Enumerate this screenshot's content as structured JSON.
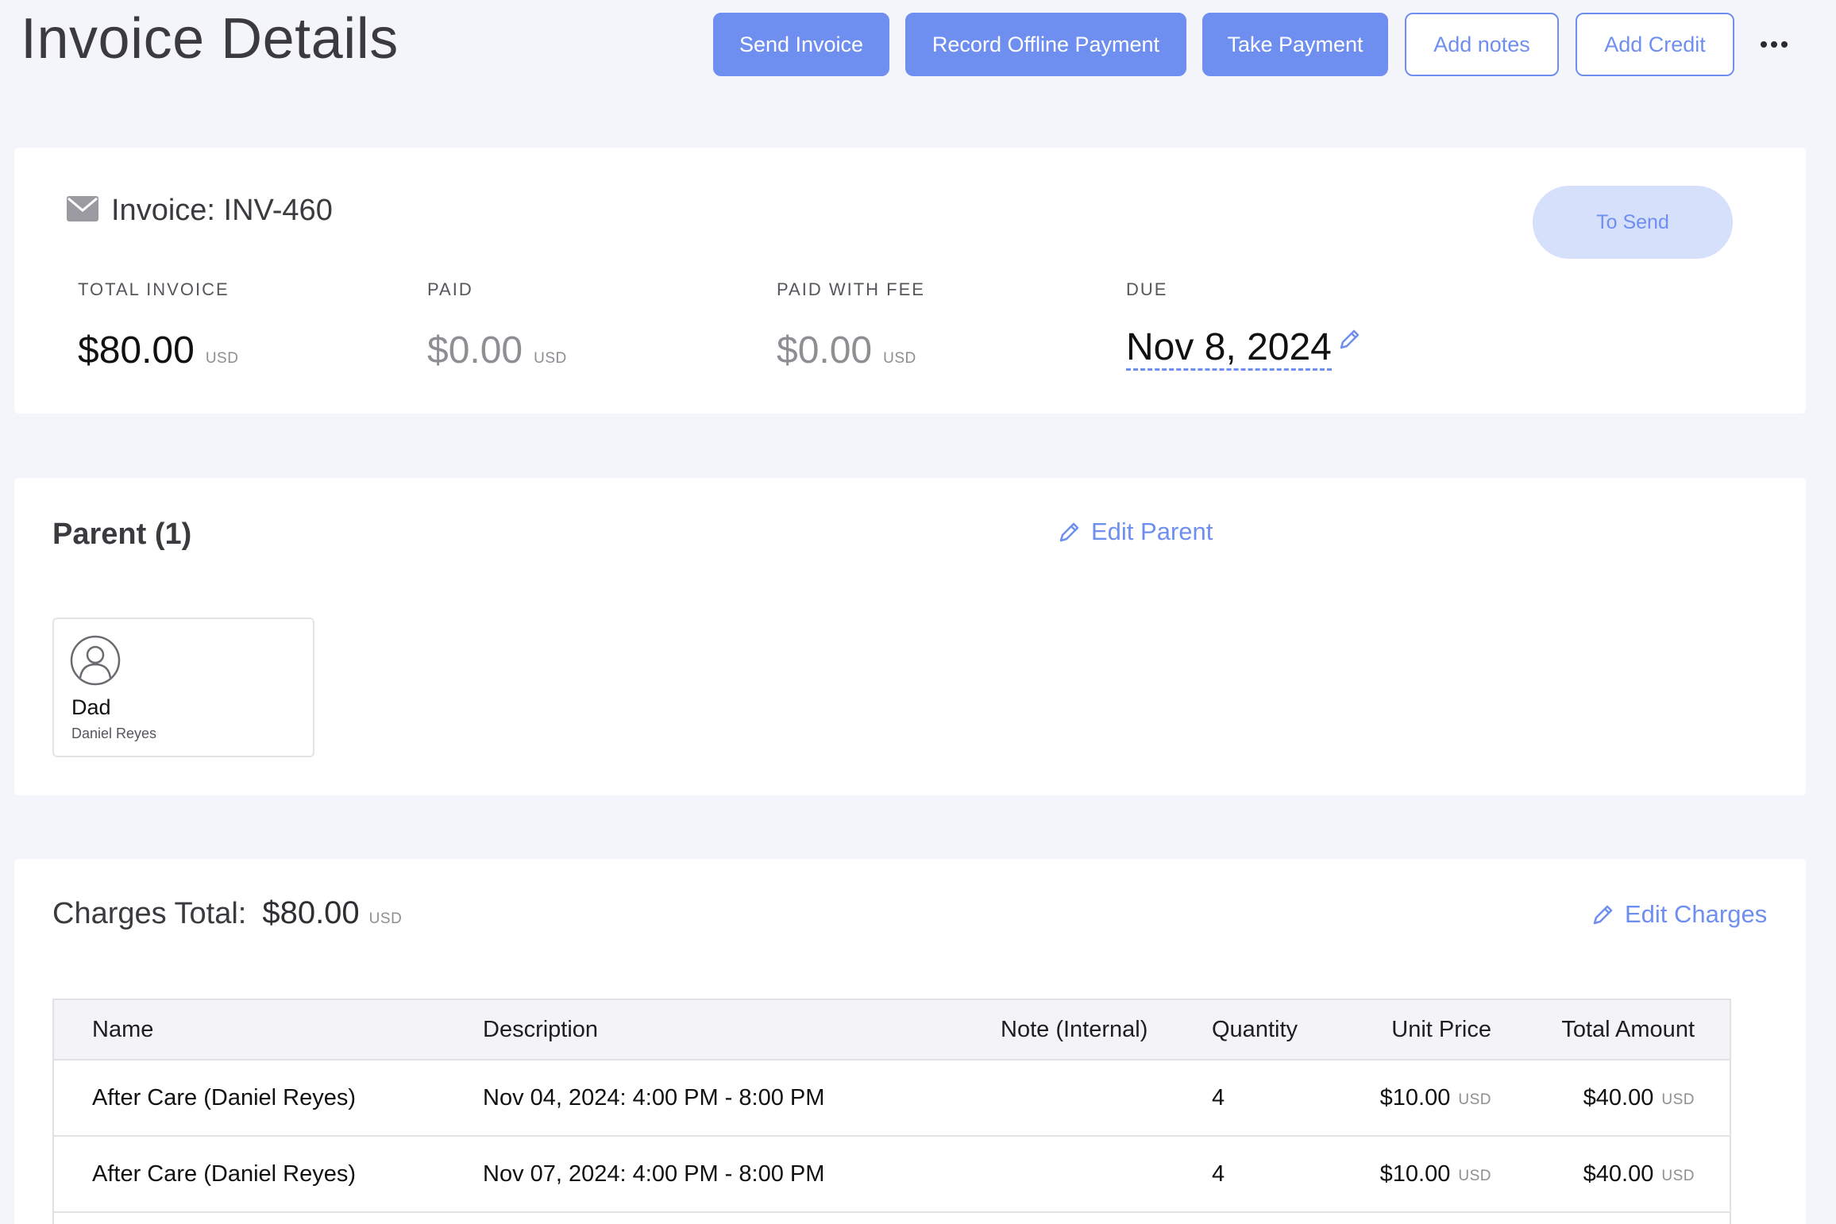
{
  "page": {
    "title": "Invoice Details"
  },
  "toolbar": {
    "send_invoice": "Send Invoice",
    "record_offline_payment": "Record Offline Payment",
    "take_payment": "Take Payment",
    "add_notes": "Add notes",
    "add_credit": "Add Credit",
    "more_icon": "more-horizontal-icon"
  },
  "invoice": {
    "title": "Invoice: INV-460",
    "icon": "mail-icon",
    "status": "To Send",
    "stats": {
      "total": {
        "label": "TOTAL INVOICE",
        "amount": "$80.00",
        "currency": "USD"
      },
      "paid": {
        "label": "PAID",
        "amount": "$0.00",
        "currency": "USD"
      },
      "paid_with_fee": {
        "label": "PAID WITH FEE",
        "amount": "$0.00",
        "currency": "USD"
      },
      "due": {
        "label": "DUE",
        "date": "Nov 8, 2024"
      }
    }
  },
  "parents": {
    "title": "Parent (1)",
    "edit_label": "Edit Parent",
    "items": [
      {
        "relation": "Dad",
        "name": "Daniel Reyes"
      }
    ]
  },
  "charges": {
    "total_label": "Charges Total:",
    "total_amount": "$80.00",
    "total_currency": "USD",
    "edit_label": "Edit Charges",
    "columns": [
      "Name",
      "Description",
      "Note (Internal)",
      "Quantity",
      "Unit Price",
      "Total Amount"
    ],
    "rows": [
      {
        "name": "After Care (Daniel Reyes)",
        "description": "Nov 04, 2024: 4:00 PM - 8:00 PM",
        "note": "",
        "quantity": "4",
        "unit_price": "$10.00",
        "unit_currency": "USD",
        "total": "$40.00",
        "total_currency": "USD"
      },
      {
        "name": "After Care (Daniel Reyes)",
        "description": "Nov 07, 2024: 4:00 PM - 8:00 PM",
        "note": "",
        "quantity": "4",
        "unit_price": "$10.00",
        "unit_currency": "USD",
        "total": "$40.00",
        "total_currency": "USD"
      }
    ]
  },
  "colors": {
    "accent": "#6f8ff0",
    "status_bg": "#d6e0fb",
    "page_bg": "#f4f5fa"
  }
}
